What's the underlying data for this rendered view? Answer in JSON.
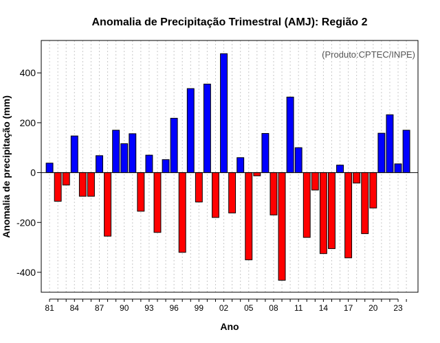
{
  "chart_data": {
    "type": "bar",
    "title": "Anomalia de Precipitação Trimestral (AMJ): Região 2",
    "xlabel": "Ano",
    "ylabel": "Anomalia de precipitação (mm)",
    "annotation": "(Produto:CPTEC/INPE)",
    "ylim": [
      -480,
      530
    ],
    "yticks": [
      -400,
      -200,
      0,
      200,
      400
    ],
    "xtick_labels": [
      "81",
      "84",
      "87",
      "90",
      "93",
      "96",
      "99",
      "02",
      "05",
      "08",
      "11",
      "14",
      "17",
      "20",
      "23"
    ],
    "grid": true,
    "positive_color": "#0000ff",
    "negative_color": "#ff0000",
    "categories": [
      "1981",
      "1982",
      "1983",
      "1984",
      "1985",
      "1986",
      "1987",
      "1988",
      "1989",
      "1990",
      "1991",
      "1992",
      "1993",
      "1994",
      "1995",
      "1996",
      "1997",
      "1998",
      "1999",
      "2000",
      "2001",
      "2002",
      "2003",
      "2004",
      "2005",
      "2006",
      "2007",
      "2008",
      "2009",
      "2010",
      "2011",
      "2012",
      "2013",
      "2014",
      "2015",
      "2016",
      "2017",
      "2018",
      "2019",
      "2020",
      "2021",
      "2022",
      "2023",
      "2024"
    ],
    "values": [
      38,
      -115,
      -50,
      147,
      -95,
      -95,
      68,
      -255,
      170,
      116,
      156,
      -155,
      70,
      -240,
      52,
      218,
      -320,
      337,
      -118,
      355,
      -180,
      477,
      -162,
      60,
      -350,
      -13,
      157,
      -170,
      -432,
      303,
      100,
      -260,
      -70,
      -325,
      -305,
      30,
      -342,
      -42,
      -245,
      -142,
      158,
      232,
      35,
      170
    ]
  }
}
